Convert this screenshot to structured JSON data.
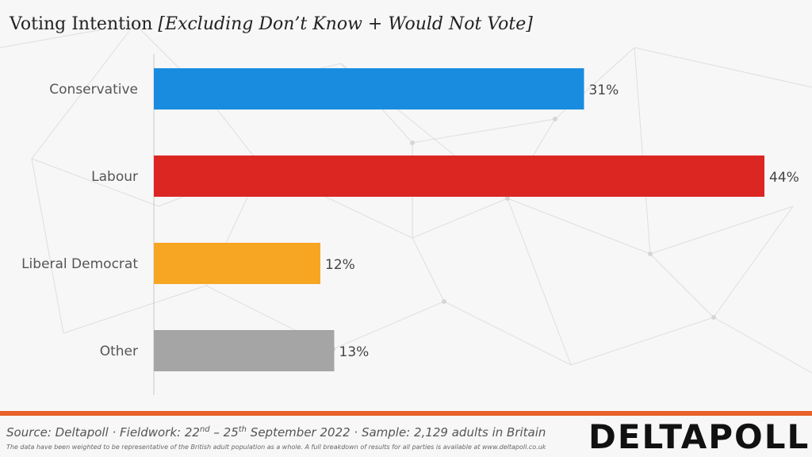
{
  "header": {
    "title_main": "Voting Intention ",
    "title_sub": "[Excluding Don’t Know + Would Not Vote]"
  },
  "chart_data": {
    "type": "bar",
    "orientation": "horizontal",
    "categories": [
      "Conservative",
      "Labour",
      "Liberal Democrat",
      "Other"
    ],
    "values": [
      31,
      44,
      12,
      13
    ],
    "value_labels": [
      "31%",
      "44%",
      "12%",
      "13%"
    ],
    "colors": [
      "#1a8ce0",
      "#dc2622",
      "#f6a623",
      "#a5a5a5"
    ],
    "xlim": [
      0,
      44
    ],
    "grid": false,
    "legend": "none"
  },
  "footer": {
    "source_prefix": "Source: Deltapoll · Fieldwork:  22",
    "source_sup1": "nd",
    "source_mid": " – 25",
    "source_sup2": "th",
    "source_suffix": " September  2022 · Sample:  2,129  adults  in  Britain",
    "disclaimer": "The data have been weighted to be representative of the British adult population as a whole. A full breakdown of results for all parties is available at www.deltapoll.co.uk",
    "logo_text": "DELTAPOLL",
    "divider_color": "#e8622a"
  }
}
